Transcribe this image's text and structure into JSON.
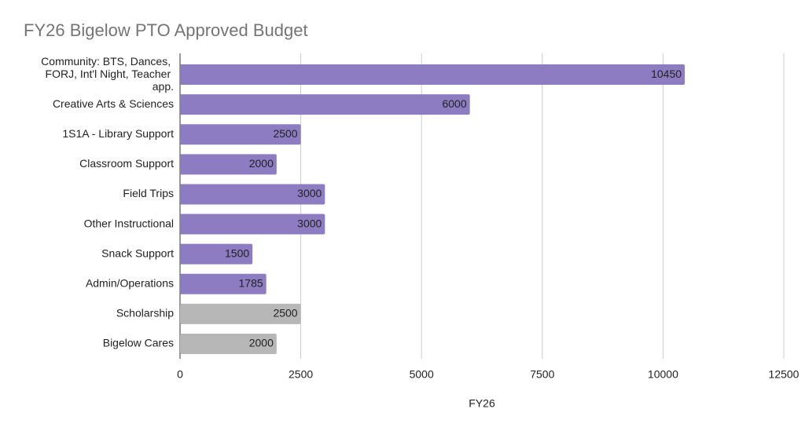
{
  "chart_data": {
    "type": "hbar",
    "title": "FY26 Bigelow PTO Approved Budget",
    "x_label": "FY26",
    "categories": [
      "Community: BTS, Dances, FORJ, Int'l Night, Teacher app.",
      "Creative Arts & Sciences",
      "1S1A - Library Support",
      "Classroom Support",
      "Field Trips",
      "Other Instructional",
      "Snack Support",
      "Admin/Operations",
      "Scholarship",
      "Bigelow Cares"
    ],
    "values": [
      10450,
      6000,
      2500,
      2000,
      3000,
      3000,
      1500,
      1785,
      2500,
      2000
    ],
    "colors": [
      "#8e7cc3",
      "#8e7cc3",
      "#8e7cc3",
      "#8e7cc3",
      "#8e7cc3",
      "#8e7cc3",
      "#8e7cc3",
      "#8e7cc3",
      "#b7b7b7",
      "#b7b7b7"
    ],
    "xlim": [
      0,
      12500
    ],
    "xticks": [
      0,
      2500,
      5000,
      7500,
      10000,
      12500
    ],
    "grid": true
  }
}
